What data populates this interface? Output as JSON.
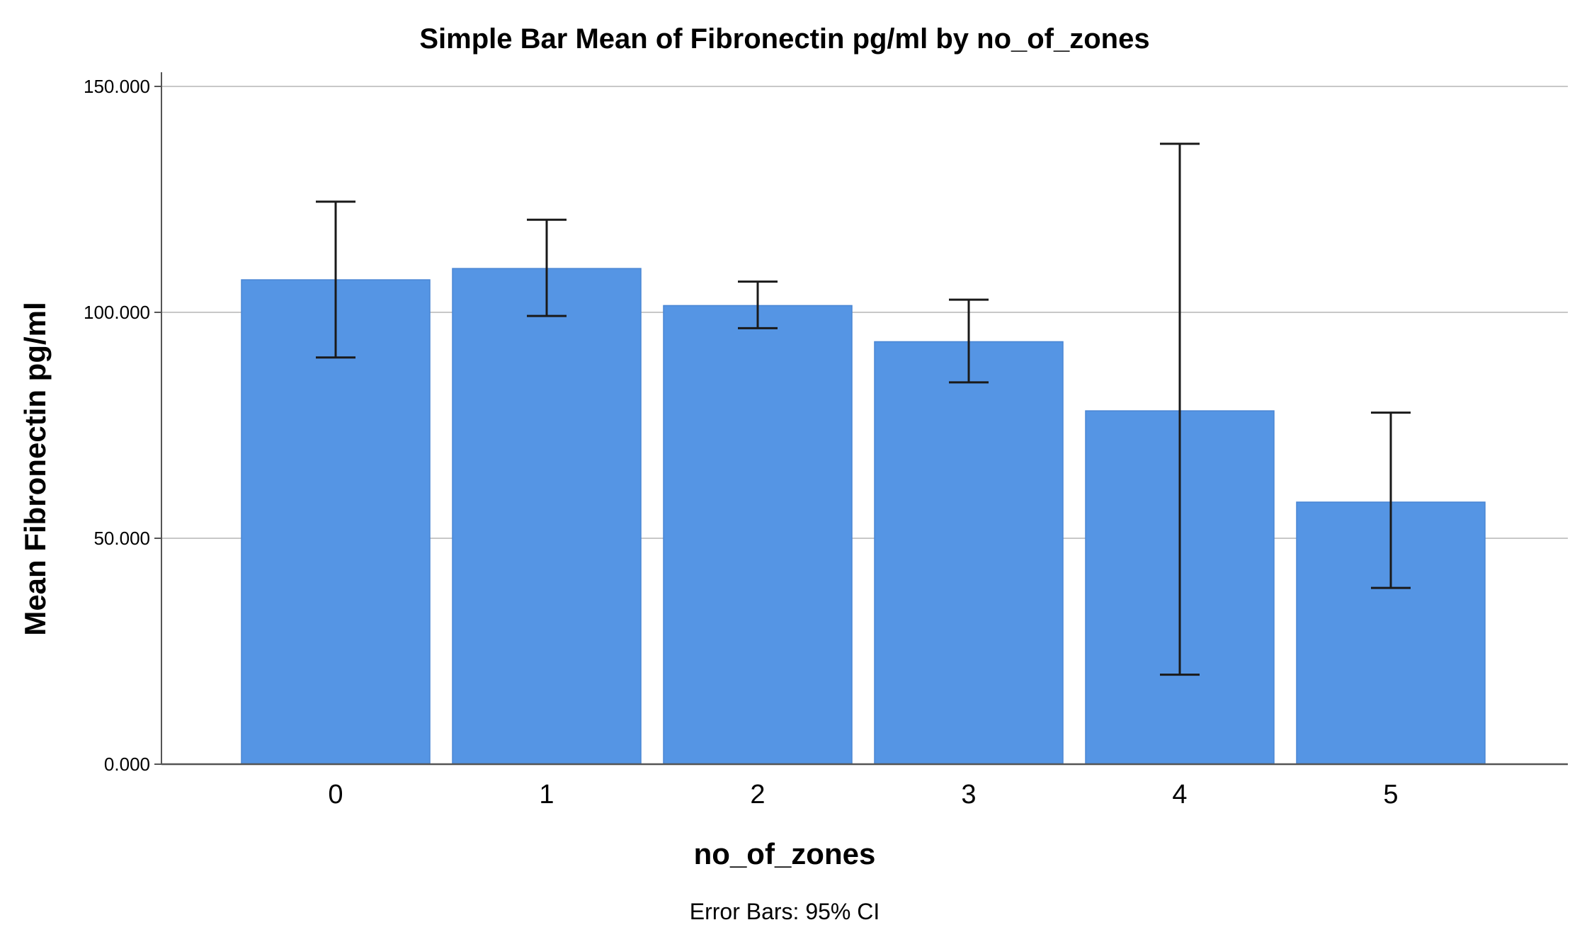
{
  "chart_data": {
    "type": "bar",
    "title": "Simple Bar Mean of Fibronectin pg/ml by no_of_zones",
    "xlabel": "no_of_zones",
    "ylabel": "Mean Fibronectin pg/ml",
    "footnote": "Error Bars: 95% CI",
    "categories": [
      "0",
      "1",
      "2",
      "3",
      "4",
      "5"
    ],
    "values": [
      107.2,
      109.7,
      101.5,
      93.5,
      78.2,
      58.0
    ],
    "error_bars": {
      "type": "95% CI",
      "lower": [
        90.0,
        99.2,
        96.5,
        84.5,
        19.8,
        39.0
      ],
      "upper": [
        124.5,
        120.5,
        106.8,
        102.8,
        137.3,
        77.8
      ]
    },
    "ylim": [
      0,
      150
    ],
    "yticks": [
      0,
      50,
      100,
      150
    ],
    "ytick_labels": [
      "0.000",
      "50.000",
      "100.000",
      "150.000"
    ],
    "grid": "horizontal",
    "legend": "none",
    "colors": {
      "bar": "#5595E4",
      "bar_edge": "#4A86D4",
      "grid": "#C8C8C8",
      "axis": "#555555",
      "error_bar": "#1A1A1A"
    }
  }
}
